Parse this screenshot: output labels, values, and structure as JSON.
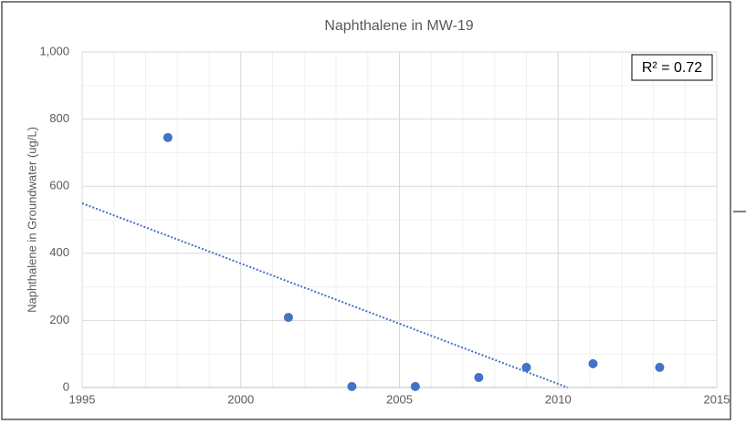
{
  "chart_data": {
    "type": "scatter",
    "title": "Naphthalene in MW-19",
    "y_label": "Naphthalene in Groundwater (ug/L)",
    "annotation": "R² = 0.72",
    "series": [
      {
        "name": "MW-19",
        "color": "#4472c4",
        "x": [
          1997.7,
          2001.5,
          2003.5,
          2005.5,
          2007.5,
          2009.0,
          2011.1,
          2013.2
        ],
        "values": [
          745,
          209,
          3,
          3,
          30,
          60,
          71,
          60
        ]
      }
    ],
    "trendline": {
      "color": "#4472c4",
      "x": [
        1995,
        2010.3
      ],
      "values": [
        549,
        0
      ]
    },
    "xlim": [
      1995,
      2015
    ],
    "xticks": [
      1995,
      2000,
      2005,
      2010,
      2015
    ],
    "ylim": [
      0,
      1000
    ],
    "yticks": [
      0,
      200,
      400,
      600,
      800,
      {
        "value": 1000,
        "label": "1,000"
      }
    ],
    "grid": true
  }
}
